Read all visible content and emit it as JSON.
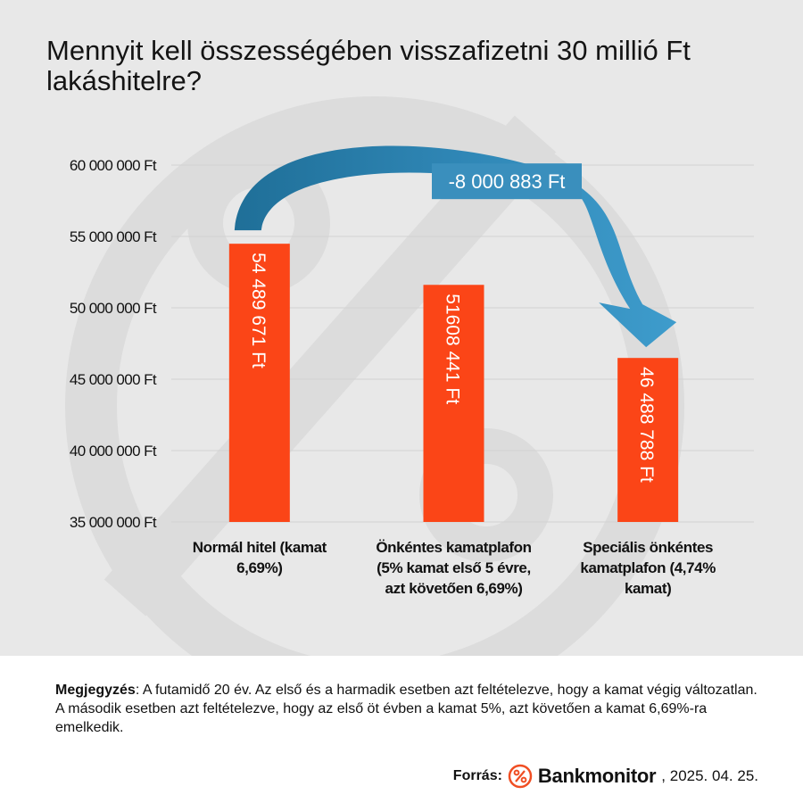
{
  "title": "Mennyit kell összességében visszafizetni 30 millió Ft lakáshitelre?",
  "chart_data": {
    "type": "bar",
    "title": "Mennyit kell összességében visszafizetni 30 millió Ft lakáshitelre?",
    "xlabel": "",
    "ylabel": "",
    "ylim": [
      35000000,
      60000000
    ],
    "yticks": [
      35000000,
      40000000,
      45000000,
      50000000,
      55000000,
      60000000
    ],
    "ytick_labels": [
      "35 000 000 Ft",
      "40 000 000 Ft",
      "45 000 000 Ft",
      "50 000 000 Ft",
      "55 000 000 Ft",
      "60 000 000 Ft"
    ],
    "grid": true,
    "bar_color": "#fb4517",
    "categories": [
      [
        "Normál hitel (kamat",
        "6,69%)"
      ],
      [
        "Önkéntes kamatplafon",
        "(5% kamat első 5 évre,",
        "azt követően 6,69%)"
      ],
      [
        "Speciális önkéntes",
        "kamatplafon (4,74%",
        "kamat)"
      ]
    ],
    "values": [
      54489671,
      51608441,
      46488788
    ],
    "data_labels": [
      "54 489 671 Ft",
      "51608 441 Ft",
      "46 488 788 Ft"
    ],
    "annotation": {
      "text": "-8 000 883 Ft",
      "from_category": 0,
      "to_category": 2,
      "arrow_color": "#3a8fbd",
      "label_bg": "#3a8fbd"
    }
  },
  "note": {
    "label": "Megjegyzés",
    "text": ": A futamidő 20 év. Az első és a harmadik esetben azt feltételezve, hogy a kamat végig változatlan. A második esetben azt feltételezve, hogy az első öt évben a kamat 5%, azt követően a kamat 6,69%-ra emelkedik."
  },
  "source": {
    "label": "Forrás:",
    "logo_text": "Bankmonitor",
    "date": ", 2025. 04. 25.",
    "logo_color": "#f04e23",
    "logo_icon": "percent-icon"
  }
}
